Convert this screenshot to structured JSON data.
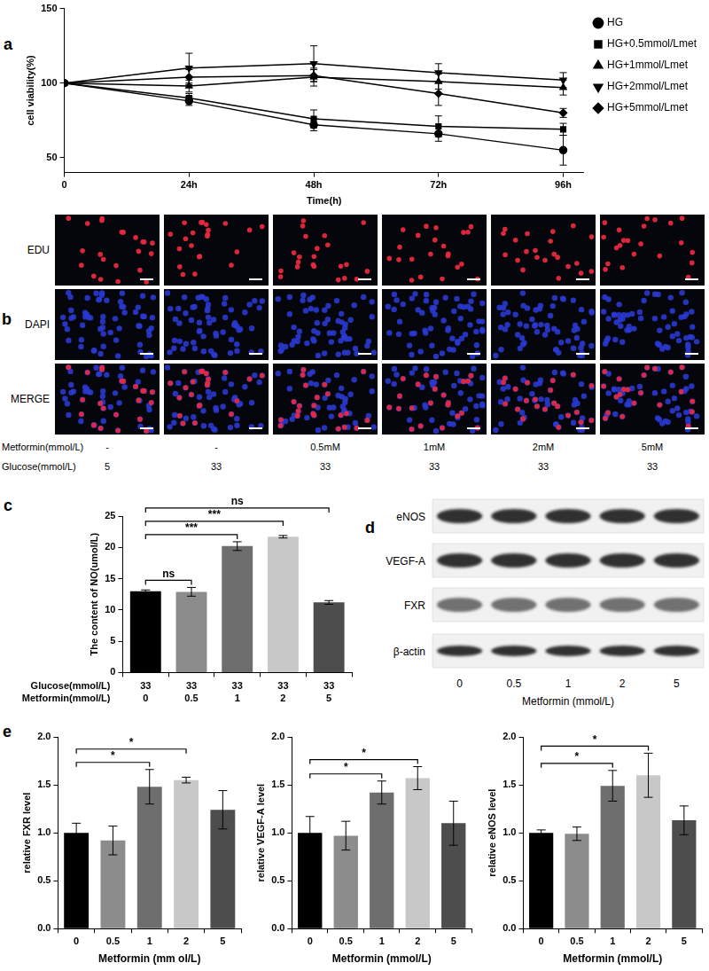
{
  "chart_data": [
    {
      "panel": "a",
      "type": "line",
      "x": [
        0,
        24,
        48,
        72,
        96
      ],
      "xlim": [
        0,
        100
      ],
      "xticks": [
        0,
        {
          "value": 24,
          "label": "24h"
        },
        {
          "value": 48,
          "label": "48h"
        },
        {
          "value": 72,
          "label": "72h"
        },
        {
          "value": 96,
          "label": "96h"
        }
      ],
      "xlabel": "Time(h)",
      "ylabel": "cell viability(%)",
      "ylim": [
        40,
        150
      ],
      "yticks": [
        50,
        100,
        150
      ],
      "grid": false,
      "legend": "right",
      "series": [
        {
          "name": "HG",
          "color": "#000000",
          "marker": "circle",
          "line_style": "solid",
          "values": [
            100,
            88,
            72,
            66,
            55
          ],
          "errors": [
            0,
            3,
            4,
            5,
            10
          ]
        },
        {
          "name": "HG+0.5mmol/Lmet",
          "color": "#000000",
          "marker": "square",
          "line_style": "solid",
          "values": [
            100,
            90,
            76,
            71,
            69
          ],
          "errors": [
            0,
            3,
            6,
            7,
            4
          ]
        },
        {
          "name": "HG+1mmol/Lmet",
          "color": "#000000",
          "marker": "triangle",
          "line_style": "solid",
          "values": [
            100,
            98,
            104,
            101,
            97
          ],
          "errors": [
            0,
            4,
            6,
            5,
            5
          ]
        },
        {
          "name": "HG+2mmol/Lmet",
          "color": "#000000",
          "marker": "triangle-down",
          "line_style": "solid",
          "values": [
            100,
            110,
            113,
            107,
            102
          ],
          "errors": [
            0,
            10,
            12,
            6,
            5
          ]
        },
        {
          "name": "HG+5mmol/Lmet",
          "color": "#000000",
          "marker": "diamond",
          "line_style": "solid",
          "values": [
            100,
            104,
            105,
            93,
            80
          ],
          "errors": [
            0,
            5,
            4,
            8,
            3
          ]
        }
      ]
    },
    {
      "panel": "c",
      "type": "bar",
      "categories": [
        "0",
        "0.5",
        "1",
        "2",
        "5"
      ],
      "xlabel": "Metformin(mmol/L)",
      "glucose": {
        "label": "Glucose(mmol/L)",
        "values": [
          33,
          33,
          33,
          33,
          33
        ]
      },
      "ylabel": "The content of NO(umol/L)",
      "values": [
        13.0,
        12.9,
        20.2,
        21.7,
        11.2
      ],
      "errors": [
        0.2,
        0.7,
        0.7,
        0.2,
        0.3
      ],
      "colors": [
        "#000000",
        "#8c8c8c",
        "#6e6e6e",
        "#c8c8c8",
        "#4d4d4d"
      ],
      "ylim": [
        0,
        25
      ],
      "yticks": [
        0,
        5,
        10,
        15,
        20,
        25
      ],
      "grid": false,
      "significance": [
        {
          "from": "0",
          "to": "0.5",
          "label": "ns"
        },
        {
          "from": "0",
          "to": "1",
          "label": "***"
        },
        {
          "from": "0",
          "to": "2",
          "label": "***"
        },
        {
          "from": "0",
          "to": "5",
          "label": "ns"
        }
      ]
    },
    {
      "panel": "e",
      "type": "bar",
      "categories": [
        "0",
        "0.5",
        "1",
        "2",
        "5"
      ],
      "xlabel": "Metformin (mm ol/L)",
      "ylabel": "relative FXR level",
      "values": [
        1.0,
        0.92,
        1.48,
        1.55,
        1.24
      ],
      "errors": [
        0.1,
        0.15,
        0.18,
        0.03,
        0.2
      ],
      "colors": [
        "#000000",
        "#8c8c8c",
        "#6e6e6e",
        "#c8c8c8",
        "#4d4d4d"
      ],
      "ylim": [
        0,
        2
      ],
      "yticks": [
        {
          "value": 0,
          "label": "0.0"
        },
        0.5,
        {
          "value": 1,
          "label": "1.0"
        },
        1.5,
        {
          "value": 2,
          "label": "2.0"
        }
      ],
      "grid": false,
      "significance": [
        {
          "from": "0",
          "to": "1",
          "label": "*"
        },
        {
          "from": "0",
          "to": "2",
          "label": "*"
        }
      ]
    },
    {
      "type": "bar",
      "categories": [
        "0",
        "0.5",
        "1",
        "2",
        "5"
      ],
      "xlabel": "Metformin (mmol/L)",
      "ylabel": "relative VEGF-A level",
      "values": [
        1.0,
        0.97,
        1.42,
        1.57,
        1.1
      ],
      "errors": [
        0.17,
        0.15,
        0.12,
        0.12,
        0.23
      ],
      "colors": [
        "#000000",
        "#8c8c8c",
        "#6e6e6e",
        "#c8c8c8",
        "#4d4d4d"
      ],
      "ylim": [
        0,
        2
      ],
      "yticks": [
        {
          "value": 0,
          "label": "0.0"
        },
        0.5,
        {
          "value": 1,
          "label": "1.0"
        },
        1.5,
        {
          "value": 2,
          "label": "2.0"
        }
      ],
      "grid": false,
      "significance": [
        {
          "from": "0",
          "to": "1",
          "label": "*"
        },
        {
          "from": "0",
          "to": "2",
          "label": "*"
        }
      ]
    },
    {
      "type": "bar",
      "categories": [
        "0",
        "0.5",
        "1",
        "2",
        "5"
      ],
      "xlabel": "Metformin (mmol/L)",
      "ylabel": "relative eNOS level",
      "values": [
        1.0,
        0.99,
        1.49,
        1.6,
        1.13
      ],
      "errors": [
        0.03,
        0.07,
        0.16,
        0.23,
        0.15
      ],
      "colors": [
        "#000000",
        "#8c8c8c",
        "#6e6e6e",
        "#c8c8c8",
        "#4d4d4d"
      ],
      "ylim": [
        0,
        2
      ],
      "yticks": [
        {
          "value": 0,
          "label": "0.0"
        },
        0.5,
        {
          "value": 1,
          "label": "1.0"
        },
        1.5,
        {
          "value": 2,
          "label": "2.0"
        }
      ],
      "grid": false,
      "significance": [
        {
          "from": "0",
          "to": "1",
          "label": "*"
        },
        {
          "from": "0",
          "to": "2",
          "label": "*"
        }
      ]
    }
  ],
  "panel_b": {
    "panel": "b",
    "rows": [
      "EDU",
      "DAPI",
      "MERGE"
    ],
    "metformin": {
      "label": "Metformin(mmol/L)",
      "values": [
        "-",
        "-",
        "0.5mM",
        "1mM",
        "2mM",
        "5mM"
      ]
    },
    "glucose": {
      "label": "Glucose(mmol/L)",
      "values": [
        5,
        33,
        33,
        33,
        33,
        33
      ]
    }
  },
  "panel_d": {
    "panel": "d",
    "rows": [
      "eNOS",
      "VEGF-A",
      "FXR",
      "β-actin"
    ],
    "lanes": [
      "0",
      "0.5",
      "1",
      "2",
      "5"
    ],
    "xlabel": "Metformin (mmol/L)"
  }
}
